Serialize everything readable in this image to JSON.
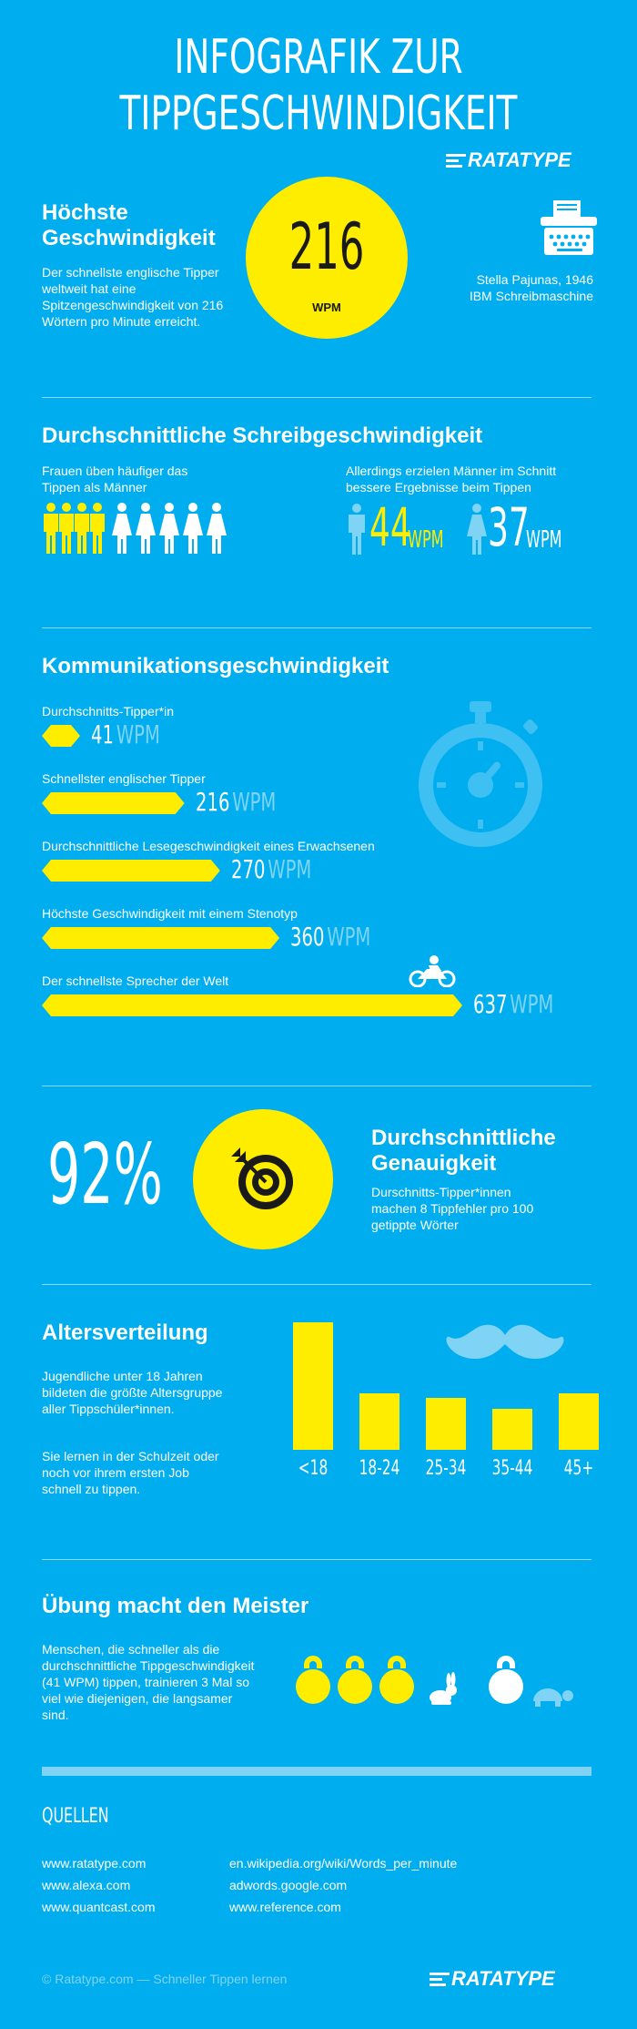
{
  "header": {
    "title_line1": "INFOGRAFIK ZUR",
    "title_line2": "TIPPGESCHWINDIGKEIT",
    "logo": "RATATYPE"
  },
  "top_speed": {
    "heading_line1": "Höchste",
    "heading_line2": "Geschwindigkeit",
    "text": "Der schnellste englische Tipper weltweit hat eine Spitzengeschwindigkeit von 216 Wörtern pro Minute erreicht.",
    "value": "216",
    "unit": "WPM",
    "person": "Stella Pajunas, 1946",
    "machine": "IBM Schreibmaschine"
  },
  "average_typing": {
    "heading": "Durchschnittliche Schreibgeschwindigkeit",
    "women_text_line1": "Frauen üben häufiger das",
    "women_text_line2": "Tippen als Männer",
    "men_text_line1": "Allerdings erzielen Männer im Schnitt",
    "men_text_line2": "bessere Ergebnisse beim Tippen",
    "male_wpm": "44",
    "female_wpm": "37",
    "unit": "WPM",
    "male_figures": 4,
    "female_figures": 5
  },
  "communication": {
    "heading": "Kommunikationsgeschwindigkeit",
    "unit": "WPM",
    "max_value": 637,
    "items": [
      {
        "label": "Durchschnitts-Tipper*in",
        "value": 41
      },
      {
        "label": "Schnellster englischer Tipper",
        "value": 216
      },
      {
        "label": "Durchschnittliche Lesegeschwindigkeit eines Erwachsenen",
        "value": 270
      },
      {
        "label": "Höchste Geschwindigkeit mit einem Stenotyp",
        "value": 360
      },
      {
        "label": "Der schnellste Sprecher der Welt",
        "value": 637
      }
    ]
  },
  "accuracy": {
    "percent": "92%",
    "heading_line1": "Durchschnittliche",
    "heading_line2": "Genauigkeit",
    "text": "Durschnitts-Tipper*innen machen 8 Tippfehler pro 100 getippte Wörter"
  },
  "age": {
    "heading": "Altersverteilung",
    "text1": "Jugendliche unter 18 Jahren bildeten die größte Altersgruppe aller Tippschüler*innen.",
    "text2": "Sie lernen in der Schulzeit oder noch vor ihrem ersten Job schnell zu tippen.",
    "groups": [
      {
        "label": "<18",
        "share": 1.0
      },
      {
        "label": "18-24",
        "share": 0.44
      },
      {
        "label": "25-34",
        "share": 0.41
      },
      {
        "label": "35-44",
        "share": 0.32
      },
      {
        "label": "45+",
        "share": 0.44
      }
    ]
  },
  "practice": {
    "heading": "Übung macht den Meister",
    "text": "Menschen, die schneller als die durchschnittliche Tippgeschwindigkeit (41 WPM) tippen, trainieren 3 Mal so viel wie diejenigen, die langsamer sind."
  },
  "sources": {
    "heading": "QUELLEN",
    "left": [
      "www.ratatype.com",
      "www.alexa.com",
      "www.quantcast.com"
    ],
    "right": [
      "en.wikipedia.org/wiki/Words_per_minute",
      "adwords.google.com",
      "www.reference.com"
    ]
  },
  "footer": {
    "copyright": "© Ratatype.com — Schneller Tippen lernen",
    "logo": "RATATYPE"
  },
  "colors": {
    "background": "#00AEEF",
    "yellow": "#FFED00",
    "light_blue": "#7FD3F5",
    "dark": "#1A1A1A"
  }
}
